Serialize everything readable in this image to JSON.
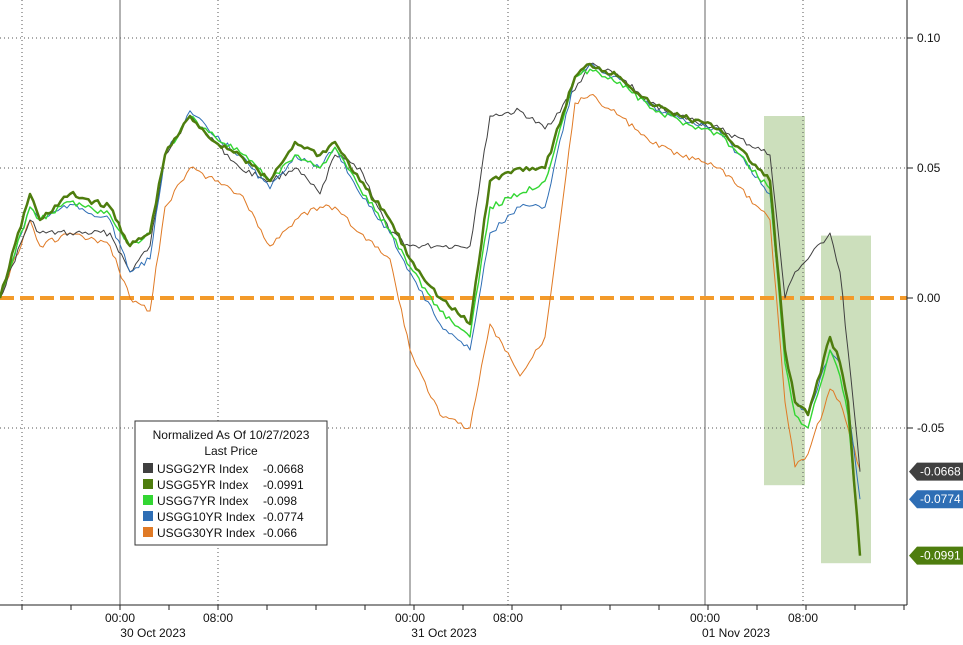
{
  "chart_data": {
    "type": "line",
    "title": "",
    "x_axis": {
      "time_ticks": [
        "00:00",
        "08:00",
        "00:00",
        "08:00",
        "00:00",
        "08:00"
      ],
      "date_labels": [
        "30 Oct 2023",
        "31 Oct 2023",
        "01 Nov 2023"
      ]
    },
    "y_axis": {
      "position": "right",
      "ticks": [
        0.1,
        0.05,
        0.0,
        -0.05
      ],
      "tick_labels": [
        "0.10",
        "0.05",
        "0.00",
        "-0.05"
      ],
      "ylim": [
        -0.115,
        0.115
      ]
    },
    "grid": "dotted",
    "zero_line": {
      "value": 0.0,
      "color": "#F39A2A",
      "style": "dashed"
    },
    "legend": {
      "placement": "lower-left",
      "title": "Normalized As Of 10/27/2023",
      "subtitle": "Last Price",
      "entries": [
        {
          "label": "USGG2YR Index",
          "value": "-0.0668",
          "color": "#404040"
        },
        {
          "label": "USGG5YR Index",
          "value": "-0.0991",
          "color": "#4E7D0E"
        },
        {
          "label": "USGG7YR Index",
          "value": "-0.098",
          "color": "#33D633"
        },
        {
          "label": "USGG10YR Index",
          "value": "-0.0774",
          "color": "#2E6EB5"
        },
        {
          "label": "USGG30YR Index",
          "value": "-0.066",
          "color": "#E07A25"
        }
      ]
    },
    "end_labels": [
      {
        "text": "-0.0668",
        "value": -0.0668,
        "color": "#404040"
      },
      {
        "text": "-0.0774",
        "value": -0.0774,
        "color": "#2E6EB5"
      },
      {
        "text": "-0.0991",
        "value": -0.0991,
        "color": "#4E7D0E"
      }
    ],
    "highlight_boxes": [
      {
        "x_range": [
          770,
          805
        ],
        "y_range": [
          -0.072,
          0.07
        ],
        "color": "#8FB86A"
      },
      {
        "x_range": [
          827,
          871
        ],
        "y_range": [
          -0.102,
          0.024
        ],
        "color": "#8FB86A"
      }
    ],
    "x_range": [
      0,
      907
    ],
    "series": [
      {
        "name": "USGG2YR Index",
        "color": "#404040",
        "width": 1,
        "x": [
          0,
          30,
          40,
          70,
          110,
          130,
          150,
          165,
          190,
          215,
          240,
          270,
          295,
          320,
          335,
          360,
          390,
          410,
          440,
          470,
          490,
          520,
          545,
          575,
          590,
          620,
          650,
          680,
          720,
          770,
          785,
          795,
          808,
          830,
          840,
          848,
          860
        ],
        "y": [
          0.0,
          0.03,
          0.025,
          0.025,
          0.025,
          0.01,
          0.02,
          0.055,
          0.07,
          0.06,
          0.05,
          0.045,
          0.05,
          0.04,
          0.055,
          0.05,
          0.025,
          0.02,
          0.02,
          0.02,
          0.07,
          0.072,
          0.065,
          0.08,
          0.09,
          0.085,
          0.075,
          0.07,
          0.065,
          0.055,
          0.0,
          0.01,
          0.015,
          0.025,
          0.01,
          -0.02,
          -0.0668
        ]
      },
      {
        "name": "USGG5YR Index",
        "color": "#4E7D0E",
        "width": 2.5,
        "x": [
          0,
          30,
          40,
          70,
          110,
          130,
          150,
          165,
          190,
          215,
          240,
          270,
          295,
          320,
          335,
          360,
          390,
          410,
          440,
          470,
          490,
          520,
          545,
          575,
          590,
          620,
          650,
          680,
          720,
          770,
          785,
          795,
          808,
          830,
          840,
          848,
          860
        ],
        "y": [
          0.0,
          0.04,
          0.03,
          0.04,
          0.035,
          0.02,
          0.025,
          0.055,
          0.07,
          0.06,
          0.055,
          0.045,
          0.06,
          0.055,
          0.06,
          0.045,
          0.03,
          0.015,
          0.0,
          -0.01,
          0.045,
          0.05,
          0.05,
          0.085,
          0.09,
          0.085,
          0.075,
          0.07,
          0.065,
          0.045,
          -0.02,
          -0.04,
          -0.045,
          -0.015,
          -0.025,
          -0.04,
          -0.0991
        ]
      },
      {
        "name": "USGG7YR Index",
        "color": "#33D633",
        "width": 1.4,
        "x": [
          0,
          30,
          40,
          70,
          110,
          130,
          150,
          165,
          190,
          215,
          240,
          270,
          295,
          320,
          335,
          360,
          390,
          410,
          440,
          470,
          490,
          520,
          545,
          575,
          590,
          620,
          650,
          680,
          720,
          770,
          785,
          795,
          808,
          830,
          840,
          848,
          860
        ],
        "y": [
          0.0,
          0.035,
          0.03,
          0.037,
          0.032,
          0.02,
          0.025,
          0.055,
          0.07,
          0.062,
          0.056,
          0.045,
          0.055,
          0.05,
          0.058,
          0.042,
          0.026,
          0.012,
          -0.005,
          -0.015,
          0.035,
          0.04,
          0.045,
          0.085,
          0.088,
          0.083,
          0.073,
          0.068,
          0.063,
          0.042,
          -0.025,
          -0.045,
          -0.05,
          -0.02,
          -0.03,
          -0.045,
          -0.098
        ]
      },
      {
        "name": "USGG10YR Index",
        "color": "#2E6EB5",
        "width": 1,
        "x": [
          0,
          30,
          40,
          70,
          110,
          130,
          150,
          165,
          190,
          215,
          240,
          270,
          295,
          320,
          335,
          360,
          390,
          410,
          440,
          470,
          490,
          520,
          545,
          575,
          590,
          620,
          650,
          680,
          720,
          770,
          785,
          795,
          808,
          830,
          840,
          848,
          860
        ],
        "y": [
          0.0,
          0.035,
          0.03,
          0.036,
          0.03,
          0.01,
          0.015,
          0.055,
          0.072,
          0.062,
          0.055,
          0.042,
          0.055,
          0.05,
          0.058,
          0.04,
          0.025,
          0.01,
          -0.01,
          -0.02,
          0.025,
          0.035,
          0.035,
          0.085,
          0.09,
          0.084,
          0.074,
          0.069,
          0.064,
          0.04,
          -0.02,
          -0.04,
          -0.045,
          -0.02,
          -0.025,
          -0.04,
          -0.0774
        ]
      },
      {
        "name": "USGG30YR Index",
        "color": "#E07A25",
        "width": 1,
        "x": [
          0,
          30,
          40,
          70,
          110,
          130,
          150,
          165,
          190,
          215,
          240,
          270,
          295,
          320,
          335,
          360,
          390,
          410,
          440,
          470,
          490,
          520,
          545,
          575,
          590,
          620,
          650,
          680,
          720,
          770,
          785,
          795,
          808,
          830,
          840,
          848,
          860
        ],
        "y": [
          0.0,
          0.03,
          0.02,
          0.025,
          0.02,
          0.0,
          -0.005,
          0.035,
          0.05,
          0.045,
          0.04,
          0.02,
          0.03,
          0.035,
          0.035,
          0.025,
          0.015,
          -0.02,
          -0.045,
          -0.05,
          -0.01,
          -0.03,
          -0.015,
          0.075,
          0.078,
          0.07,
          0.06,
          0.055,
          0.05,
          0.03,
          -0.04,
          -0.065,
          -0.06,
          -0.035,
          -0.04,
          -0.05,
          -0.066
        ]
      }
    ]
  }
}
